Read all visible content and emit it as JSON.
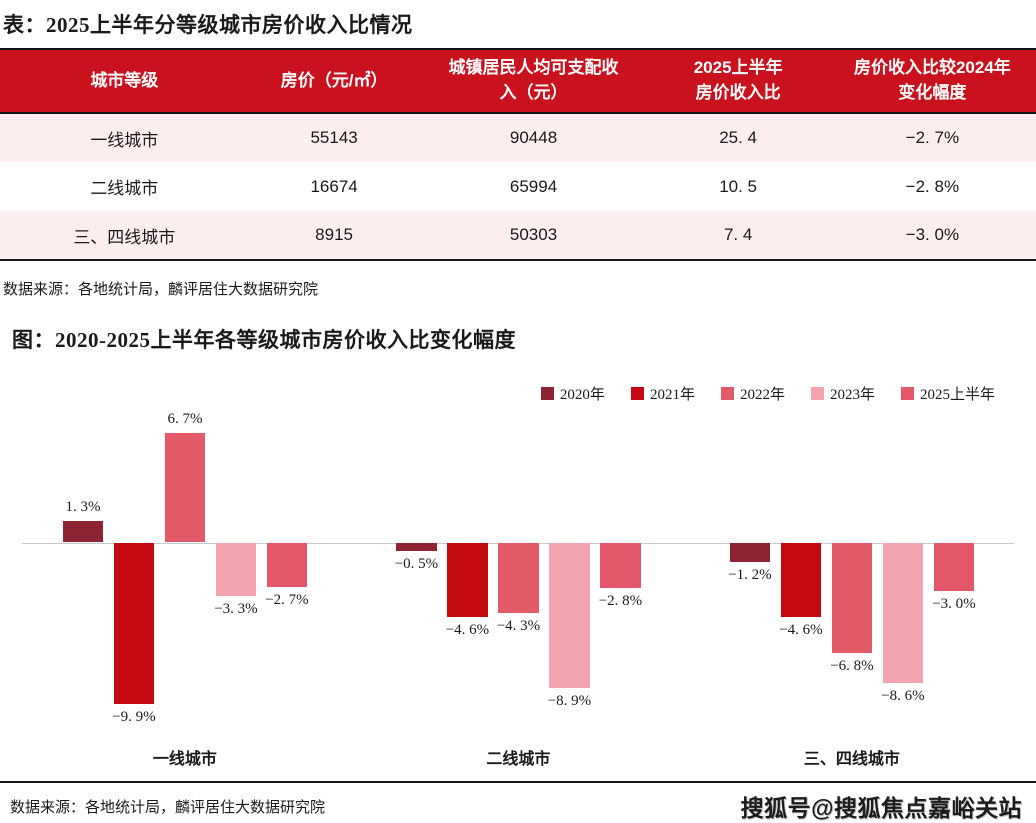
{
  "table_block": {
    "title": "表：2025上半年分等级城市房价收入比情况",
    "columns": [
      "城市等级",
      "房价（元/㎡）",
      "城镇居民人均可支配收\n入（元）",
      "2025上半年\n房价收入比",
      "房价收入比较2024年\n变化幅度"
    ],
    "rows": [
      [
        "一线城市",
        "55143",
        "90448",
        "25.4",
        "-2.7%"
      ],
      [
        "二线城市",
        "16674",
        "65994",
        "10.5",
        "-2.8%"
      ],
      [
        "三、四线城市",
        "8915",
        "50303",
        "7.4",
        "-3.0%"
      ]
    ],
    "source": "数据来源：各地统计局，麟评居住大数据研究院"
  },
  "chart_block": {
    "title": "图：2020-2025上半年各等级城市房价收入比变化幅度",
    "source": "数据来源：各地统计局，麟评居住大数据研究院"
  },
  "chart_data": {
    "type": "bar",
    "categories": [
      "一线城市",
      "二线城市",
      "三、四线城市"
    ],
    "series": [
      {
        "name": "2020年",
        "color": "#8e2433",
        "values": [
          1.3,
          -0.5,
          -1.2
        ]
      },
      {
        "name": "2021年",
        "color": "#c40a10",
        "values": [
          -9.9,
          -4.6,
          -4.6
        ]
      },
      {
        "name": "2022年",
        "color": "#e25a68",
        "values": [
          6.7,
          -4.3,
          -6.8
        ]
      },
      {
        "name": "2023年",
        "color": "#f2a5af",
        "values": [
          -3.3,
          -8.9,
          -8.6
        ]
      },
      {
        "name": "2025上半年",
        "color": "#e4566a",
        "values": [
          -2.7,
          -2.8,
          -3.0
        ]
      }
    ],
    "value_format": "percent",
    "ylabel": "",
    "xlabel": "",
    "grid": "zero-line-only",
    "legend_position": "top-right"
  },
  "watermark": "搜狐号@搜狐焦点嘉峪关站",
  "colors": {
    "header_red": "#c9121e",
    "row_pink": "#fcedee",
    "zero_line": "#c9c9c9",
    "text": "#1a1a1a"
  }
}
